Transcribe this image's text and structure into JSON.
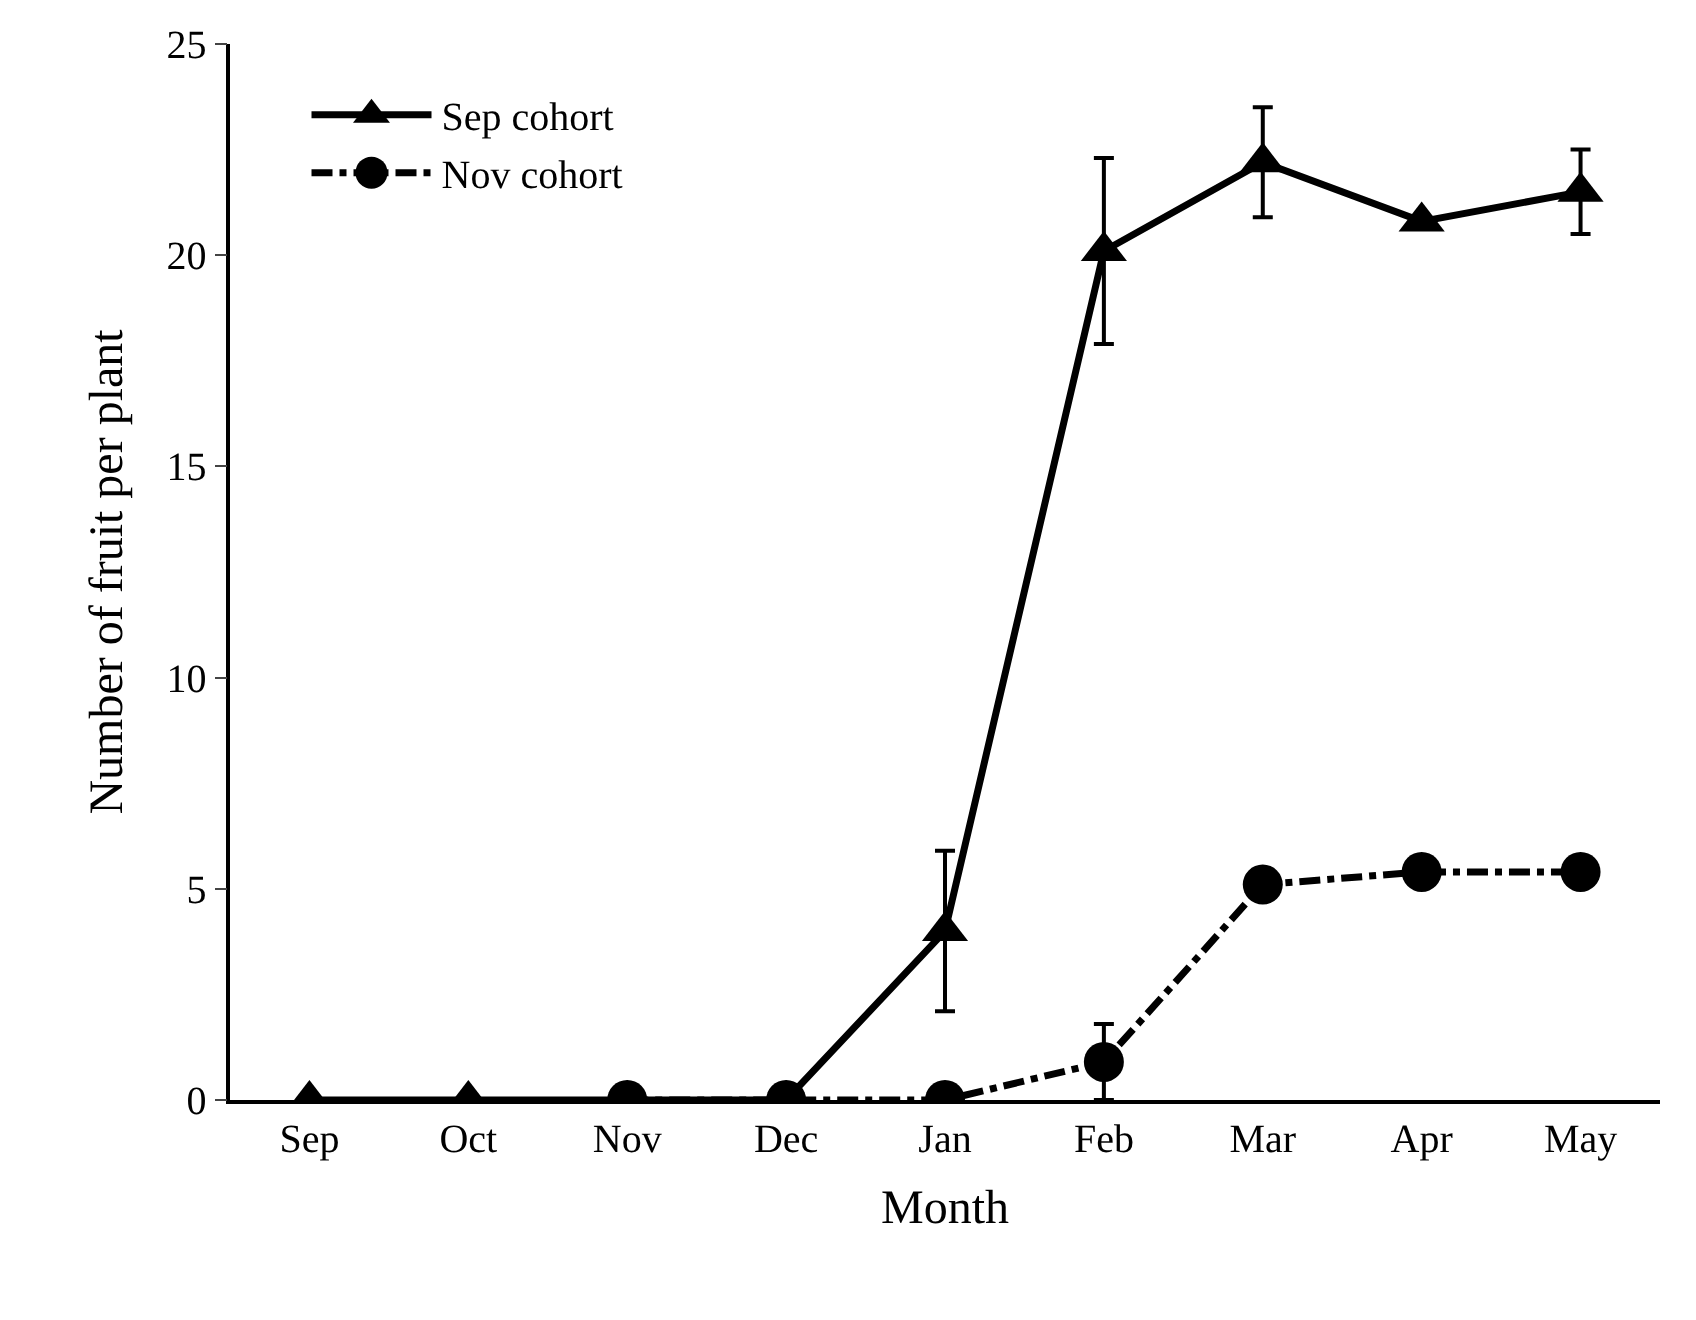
{
  "chart_data": {
    "type": "line",
    "xlabel": "Month",
    "ylabel": "Number of fruit per plant",
    "categories": [
      "Sep",
      "Oct",
      "Nov",
      "Dec",
      "Jan",
      "Feb",
      "Mar",
      "Apr",
      "May"
    ],
    "series": [
      {
        "name": "Sep cohort",
        "color": "#000000",
        "marker": "triangle",
        "line_style": "solid",
        "values": [
          0,
          0,
          0,
          0,
          4.0,
          20.1,
          22.2,
          20.8,
          21.5
        ],
        "errors": [
          null,
          null,
          null,
          null,
          1.9,
          2.2,
          1.3,
          null,
          1.0
        ]
      },
      {
        "name": "Nov cohort",
        "color": "#000000",
        "marker": "circle",
        "line_style": "dashed",
        "values": [
          null,
          null,
          0,
          0,
          0,
          0.9,
          5.1,
          5.4,
          5.4
        ],
        "errors": [
          null,
          null,
          null,
          null,
          null,
          0.9,
          null,
          null,
          null
        ]
      }
    ],
    "ylim": [
      0,
      25
    ],
    "yticks": [
      0,
      5,
      10,
      15,
      20,
      25
    ],
    "legend": "top left"
  }
}
